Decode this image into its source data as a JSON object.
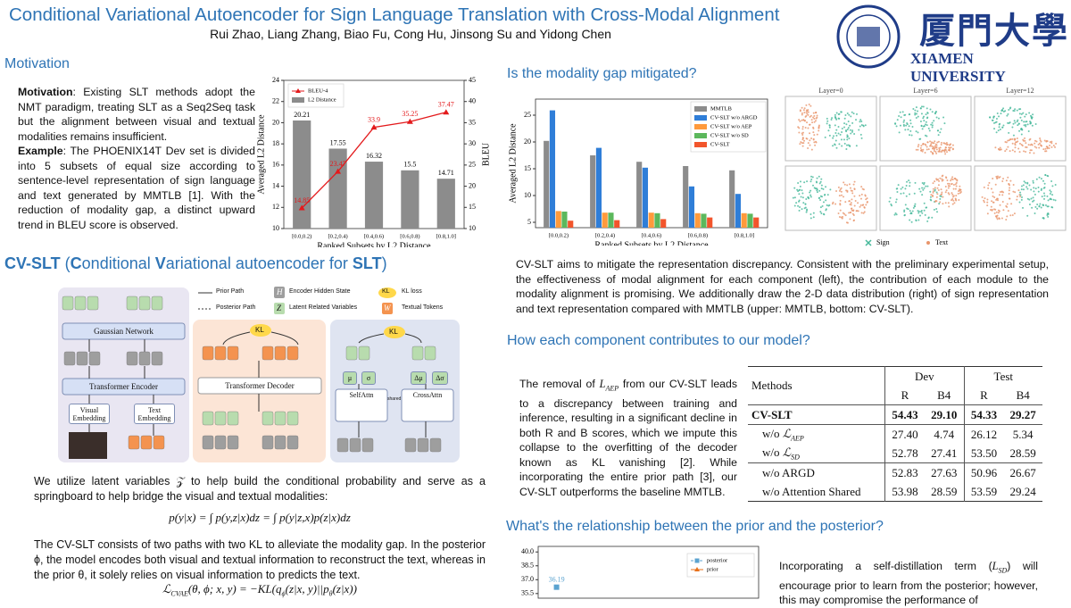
{
  "header": {
    "title": "Conditional Variational Autoencoder for Sign Language Translation with Cross-Modal Alignment",
    "authors": "Rui Zhao, Liang Zhang, Biao Fu, Cong Hu, Jinsong Su and Yidong Chen",
    "university_cn": "厦門大學",
    "university_en": "XIAMEN UNIVERSITY"
  },
  "motivation": {
    "heading": "Motivation",
    "label1": "Motivation",
    "text1": ": Existing SLT methods adopt the NMT paradigm, treating SLT as a Seq2Seq task but the alignment between visual and textual modalities remains insufficient.",
    "label2": "Example",
    "text2": ": The PHOENIX14T Dev set is divided into 5 subsets of equal size according to sentence-level representation of sign language and text generated by MMTLB [1]. With the reduction of modality gap, a distinct upward trend in BLEU score is observed."
  },
  "motivation_chart": {
    "type": "bar_line",
    "categories": [
      "[0.0,0.2)",
      "[0.2,0.4)",
      "[0.4,0.6)",
      "[0.6,0.8)",
      "[0.8,1.0]"
    ],
    "series": [
      {
        "name": "L2 Distance",
        "type": "bar",
        "color": "#8c8c8c",
        "values": [
          20.21,
          17.55,
          16.32,
          15.5,
          14.71
        ]
      },
      {
        "name": "BLEU-4",
        "type": "line",
        "color": "#e31a1c",
        "axis": "y2",
        "marker": "triangle",
        "values": [
          14.85,
          23.47,
          33.9,
          35.25,
          37.47
        ]
      }
    ],
    "ylim": [
      10,
      24
    ],
    "yticks": [
      10,
      12,
      14,
      16,
      18,
      20,
      22,
      24
    ],
    "y2lim": [
      10,
      45
    ],
    "y2ticks": [
      10,
      15,
      20,
      25,
      30,
      35,
      40,
      45
    ],
    "xlabel": "Ranked Subsets by L2 Distance",
    "ylabel": "Averaged L2 Distance",
    "y2label": "BLEU"
  },
  "method": {
    "heading": [
      "CV-SLT",
      " (",
      "C",
      "onditional ",
      "V",
      "ariational autoencoder for ",
      "SLT",
      ")"
    ],
    "diagram": {
      "legend": [
        "Prior Path",
        "Posterior Path",
        "Encoder Hidden State",
        "Latent Related Variables",
        "KL loss",
        "Textual Tokens"
      ],
      "legend_icons": [
        "H",
        "Z",
        "KL",
        "W"
      ],
      "blocks": [
        "Gaussian Network",
        "Transformer Encoder",
        "Visual Embedding",
        "Text Embedding",
        "Transformer Decoder",
        "SelfAttn",
        "CrossAttn"
      ],
      "kl": "KL",
      "shared": "shared",
      "latent": [
        "μ",
        "σ",
        "Δμ",
        "Δσ"
      ]
    },
    "text1": "We utilize latent variables 𝒵 to help build the conditional probability and serve as a springboard to help bridge the visual and textual modalities:",
    "eq1": "p(y|x) = ∫ p(y,z|x)dz = ∫ p(y|z,x)p(z|x)dz",
    "text2": "The CV-SLT consists of two paths with two KL to alleviate the modality gap. In the posterior ϕ, the model encodes both visual and textual information to reconstruct the text, whereas in the prior θ, it solely relies on visual information to predicts the text.",
    "eq2": [
      "ℒ",
      "CVAE",
      "(θ, ϕ; x, y) = −KL(q",
      "ϕ",
      "(z|x, y)||p",
      "θ",
      "(z|x))"
    ]
  },
  "gap": {
    "heading": "Is the modality gap mitigated?",
    "text": "CV-SLT aims to mitigate the representation discrepancy. Consistent with the preliminary experimental setup, the effectiveness of modal alignment for each component (left), the contribution of each module to the modality alignment is promising. We additionally draw the 2-D data distribution (right) of sign representation and text representation compared with MMTLB (upper: MMTLB, bottom: CV-SLT)."
  },
  "gap_chart": {
    "type": "bar",
    "categories": [
      "[0.0,0.2)",
      "[0.2,0.4)",
      "[0.4,0.6)",
      "[0.6,0.8)",
      "[0.8,1.0]"
    ],
    "series": [
      {
        "name": "MMTLB",
        "color": "#8c8c8c",
        "values": [
          20.2,
          17.5,
          16.3,
          15.5,
          14.7
        ]
      },
      {
        "name": "CV-SLT w/o ARGD",
        "color": "#2f7ed8",
        "values": [
          25.9,
          18.9,
          15.2,
          11.7,
          10.3
        ]
      },
      {
        "name": "CV-SLT w/o AEP",
        "color": "#ff9a3c",
        "values": [
          7.1,
          6.8,
          6.8,
          6.7,
          6.7
        ]
      },
      {
        "name": "CV-SLT w/o SD",
        "color": "#5cb85c",
        "values": [
          7.0,
          6.8,
          6.7,
          6.6,
          6.6
        ]
      },
      {
        "name": "CV-SLT",
        "color": "#f2552c",
        "values": [
          5.3,
          5.4,
          5.6,
          5.9,
          5.9
        ]
      }
    ],
    "ylim": [
      4,
      28
    ],
    "yticks": [
      5,
      10,
      15,
      20,
      25
    ],
    "xlabel": "Ranked Subsets by L2 Distance",
    "ylabel": "Averaged L2 Distance"
  },
  "tsne": {
    "titles": [
      "Layer=0",
      "Layer=6",
      "Layer=12"
    ],
    "legend": [
      "Sign",
      "Text"
    ]
  },
  "component": {
    "heading": "How each component contributes to our model?",
    "text": [
      "The removal of ",
      "L",
      "AEP",
      " from our CV-SLT leads to a discrepancy between training and inference, resulting in a significant decline in both R and B scores, which we impute this collapse to the overfitting of the decoder known as KL vanishing [2]. While incorporating the entire prior path [3], our CV-SLT outperforms the baseline MMTLB."
    ]
  },
  "table": {
    "header": [
      "Methods",
      "Dev",
      "Test"
    ],
    "subheader": [
      "R",
      "B4",
      "R",
      "B4"
    ],
    "rows": [
      {
        "method": "CV-SLT",
        "values": [
          "54.43",
          "29.10",
          "54.33",
          "29.27"
        ]
      },
      {
        "method": "w/o ",
        "symbol": "ℒ",
        "sub": "AEP",
        "values": [
          "27.40",
          "4.74",
          "26.12",
          "5.34"
        ]
      },
      {
        "method": "w/o ",
        "symbol": "ℒ",
        "sub": "SD",
        "values": [
          "52.78",
          "27.41",
          "53.50",
          "28.59"
        ]
      },
      {
        "method": "w/o ARGD",
        "values": [
          "52.83",
          "27.63",
          "50.96",
          "26.67"
        ]
      },
      {
        "method": "w/o Attention Shared",
        "values": [
          "53.98",
          "28.59",
          "53.59",
          "29.24"
        ]
      }
    ]
  },
  "prior": {
    "heading": "What's the relationship between the prior and the posterior?",
    "text": [
      "Incorporating a self-distillation term (",
      "L",
      "SD",
      ") will encourage prior to learn from the posterior; however, this may compromise the performance of"
    ]
  },
  "prior_chart": {
    "type": "line",
    "categories": [
      null
    ],
    "series": [
      {
        "name": "posterior",
        "color": "#5ba3d0",
        "linestyle": "dashed",
        "marker": "square",
        "values": [
          36.19
        ]
      },
      {
        "name": "prior",
        "color": "#e8701a",
        "marker": "triangle",
        "values": [
          null
        ]
      }
    ],
    "ylim": [
      35,
      40.6
    ],
    "yticks": [
      {
        "value": 40,
        "label": "40.0"
      },
      38.5,
      {
        "value": 37,
        "label": "37.0"
      },
      35.5
    ]
  }
}
